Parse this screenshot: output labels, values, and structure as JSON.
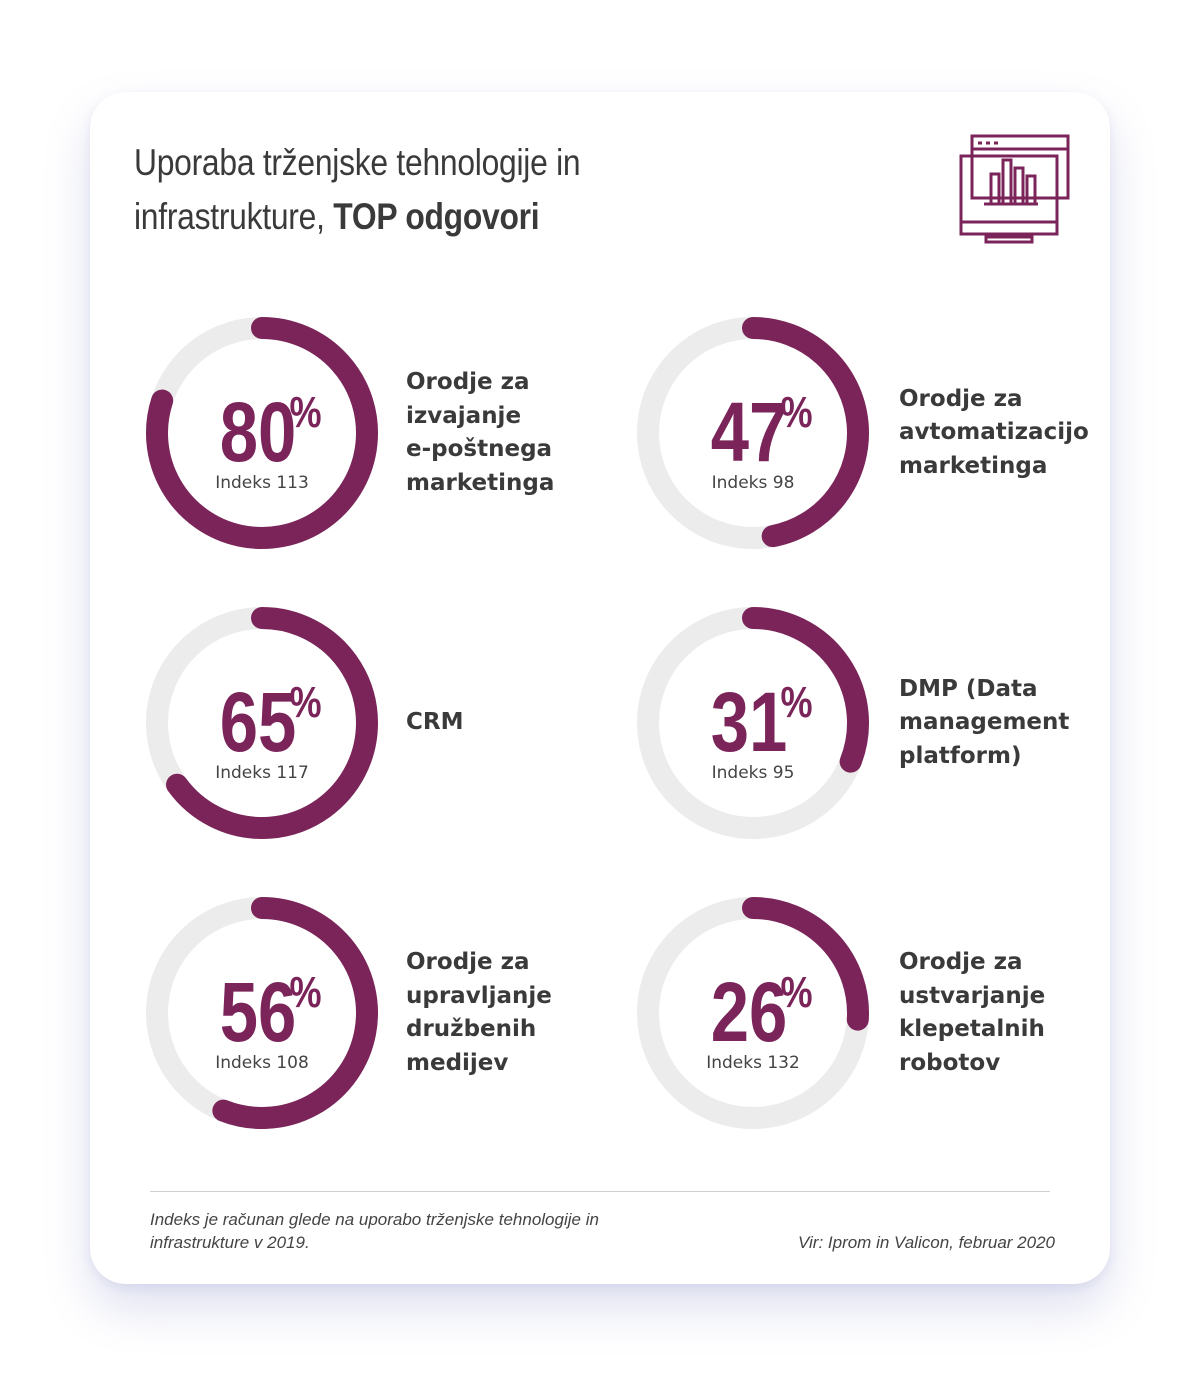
{
  "title": {
    "regular": "Uporaba trženjske tehnologije in infrastrukture,",
    "bold": "TOP odgovori"
  },
  "icon": "monitor-bar-chart-icon",
  "colors": {
    "accent": "#7b2459",
    "track": "#ececec",
    "text": "#3a3a3a"
  },
  "chart_data": {
    "type": "donut",
    "unit": "%",
    "items": [
      {
        "value": 80,
        "value_text": "80",
        "index_text": "Indeks 113",
        "label": "Orodje za\nizvajanje\ne-poštnega\nmarketinga"
      },
      {
        "value": 47,
        "value_text": "47",
        "index_text": "Indeks 98",
        "label": "Orodje za\navtomatizacijo\nmarketinga"
      },
      {
        "value": 65,
        "value_text": "65",
        "index_text": "Indeks 117",
        "label": "CRM"
      },
      {
        "value": 31,
        "value_text": "31",
        "index_text": "Indeks 95",
        "label": "DMP (Data\nmanagement\nplatform)"
      },
      {
        "value": 56,
        "value_text": "56",
        "index_text": "Indeks 108",
        "label": "Orodje za\nupravljanje\ndružbenih\nmedijev"
      },
      {
        "value": 26,
        "value_text": "26",
        "index_text": "Indeks 132",
        "label": "Orodje za\nustvarjanje\nklepetalnih\nrobotov"
      }
    ]
  },
  "footer": {
    "note": "Indeks je računan glede na uporabo trženjske tehnologije in infrastrukture v 2019.",
    "source": "Vir: Iprom in Valicon, februar 2020"
  }
}
